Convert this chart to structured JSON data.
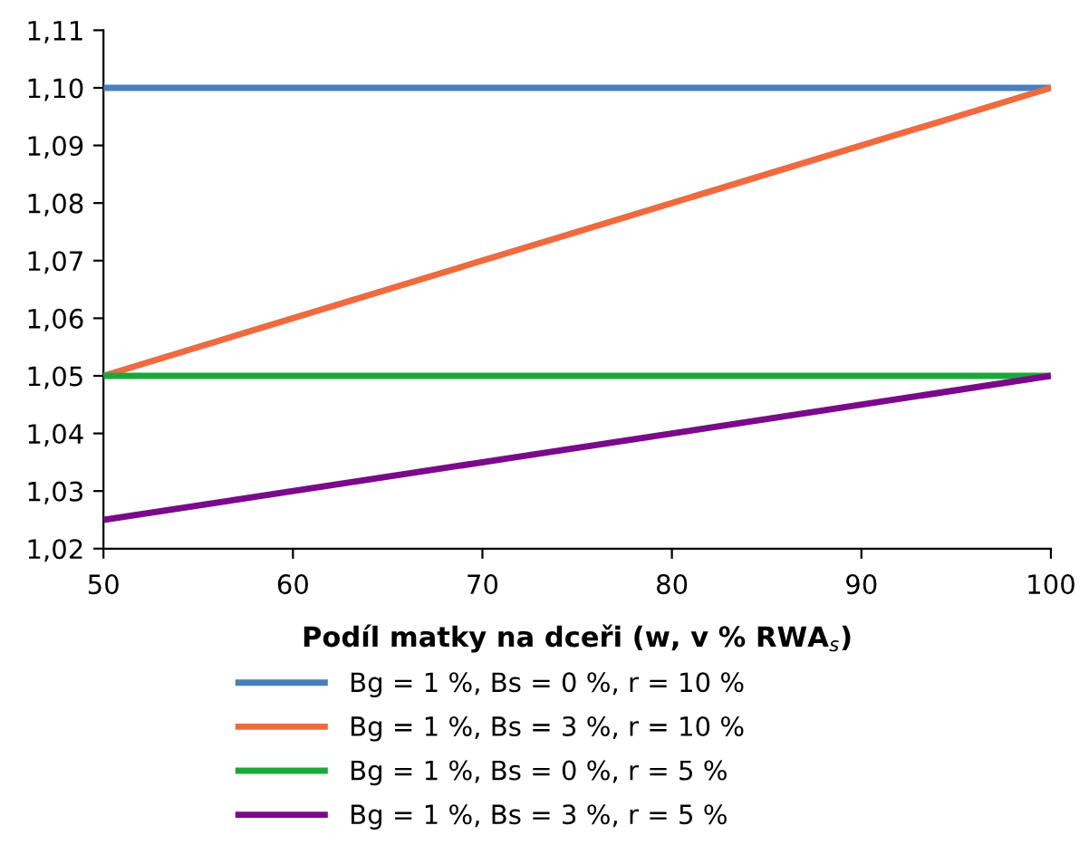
{
  "chart_data": {
    "type": "line",
    "xlabel": "Podíl matky na dceři (w, v % RWA$_{s}$)",
    "x": [
      50,
      100
    ],
    "series": [
      {
        "name": "Bg = 1 %, Bs = 0 %, r = 10 %",
        "color": "#4a7ebb",
        "values": [
          1.1,
          1.1
        ]
      },
      {
        "name": "Bg = 1 %, Bs = 3 %, r = 10 %",
        "color": "#ef6a3f",
        "values": [
          1.05,
          1.1
        ]
      },
      {
        "name": "Bg = 1 %, Bs = 0 %, r = 5 %",
        "color": "#1aa83c",
        "values": [
          1.05,
          1.05
        ]
      },
      {
        "name": "Bg = 1 %, Bs = 3 %, r = 5 %",
        "color": "#7a0a8a",
        "values": [
          1.025,
          1.05
        ]
      }
    ],
    "xlim": [
      50,
      100
    ],
    "xticks": [
      50,
      60,
      70,
      80,
      90,
      100
    ],
    "ylim": [
      1.02,
      1.11
    ],
    "yticks": [
      {
        "value": 1.02,
        "label": "1,02"
      },
      {
        "value": 1.03,
        "label": "1,03"
      },
      {
        "value": 1.04,
        "label": "1,04"
      },
      {
        "value": 1.05,
        "label": "1,05"
      },
      {
        "value": 1.06,
        "label": "1,06"
      },
      {
        "value": 1.07,
        "label": "1,07"
      },
      {
        "value": 1.08,
        "label": "1,08"
      },
      {
        "value": 1.09,
        "label": "1,09"
      },
      {
        "value": 1.1,
        "label": "1,10"
      },
      {
        "value": 1.11,
        "label": "1,11"
      }
    ],
    "grid": false,
    "legend": "bottom",
    "marker": "none",
    "line_style": "solid"
  }
}
